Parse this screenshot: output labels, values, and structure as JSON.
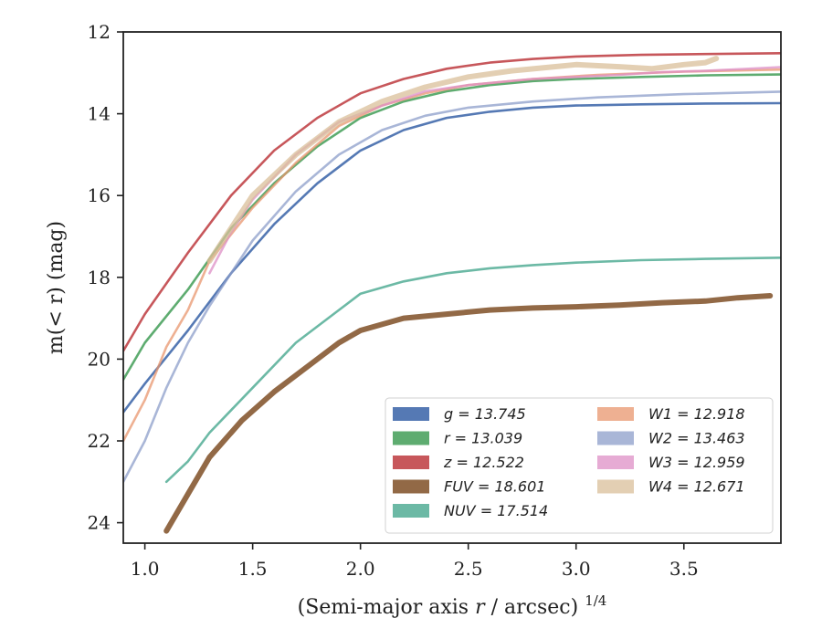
{
  "chart_data": {
    "type": "line",
    "xlabel": "(Semi-major axis r / arcsec)",
    "xlabel_italic_part": "r",
    "xlabel_exponent": "1/4",
    "ylabel": "m(< r) (mag)",
    "xlim": [
      0.9,
      3.95
    ],
    "ylim": [
      24.5,
      12.0
    ],
    "y_inverted": true,
    "x_ticks": [
      1.0,
      1.5,
      2.0,
      2.5,
      3.0,
      3.5
    ],
    "x_tick_labels": [
      "1.0",
      "1.5",
      "2.0",
      "2.5",
      "3.0",
      "3.5"
    ],
    "y_ticks": [
      12,
      14,
      16,
      18,
      20,
      22,
      24
    ],
    "y_tick_labels": [
      "12",
      "14",
      "16",
      "18",
      "20",
      "22",
      "24"
    ],
    "grid": false,
    "legend_position": "lower-right",
    "legend_columns": 2,
    "series": [
      {
        "name": "g = 13.745",
        "color": "#4c72b0",
        "points": [
          [
            0.9,
            21.3
          ],
          [
            1.0,
            20.6
          ],
          [
            1.2,
            19.3
          ],
          [
            1.4,
            17.9
          ],
          [
            1.6,
            16.7
          ],
          [
            1.8,
            15.7
          ],
          [
            2.0,
            14.9
          ],
          [
            2.2,
            14.4
          ],
          [
            2.4,
            14.1
          ],
          [
            2.6,
            13.95
          ],
          [
            2.8,
            13.85
          ],
          [
            3.0,
            13.8
          ],
          [
            3.3,
            13.77
          ],
          [
            3.6,
            13.75
          ],
          [
            3.95,
            13.74
          ]
        ]
      },
      {
        "name": "r = 13.039",
        "color": "#55a868",
        "points": [
          [
            0.9,
            20.5
          ],
          [
            1.0,
            19.6
          ],
          [
            1.2,
            18.3
          ],
          [
            1.4,
            16.8
          ],
          [
            1.6,
            15.7
          ],
          [
            1.8,
            14.8
          ],
          [
            2.0,
            14.1
          ],
          [
            2.2,
            13.7
          ],
          [
            2.4,
            13.45
          ],
          [
            2.6,
            13.3
          ],
          [
            2.8,
            13.2
          ],
          [
            3.0,
            13.15
          ],
          [
            3.3,
            13.1
          ],
          [
            3.6,
            13.06
          ],
          [
            3.95,
            13.04
          ]
        ]
      },
      {
        "name": "z = 12.522",
        "color": "#c44e52",
        "points": [
          [
            0.9,
            19.8
          ],
          [
            1.0,
            18.9
          ],
          [
            1.2,
            17.4
          ],
          [
            1.4,
            16.0
          ],
          [
            1.6,
            14.9
          ],
          [
            1.8,
            14.1
          ],
          [
            2.0,
            13.5
          ],
          [
            2.2,
            13.15
          ],
          [
            2.4,
            12.9
          ],
          [
            2.6,
            12.75
          ],
          [
            2.8,
            12.66
          ],
          [
            3.0,
            12.6
          ],
          [
            3.3,
            12.56
          ],
          [
            3.6,
            12.54
          ],
          [
            3.95,
            12.52
          ]
        ]
      },
      {
        "name": "FUV = 18.601",
        "color": "#8c613c",
        "points": [
          [
            1.1,
            24.2
          ],
          [
            1.2,
            23.3
          ],
          [
            1.3,
            22.4
          ],
          [
            1.45,
            21.5
          ],
          [
            1.6,
            20.8
          ],
          [
            1.8,
            20.0
          ],
          [
            1.9,
            19.6
          ],
          [
            2.0,
            19.3
          ],
          [
            2.2,
            19.0
          ],
          [
            2.4,
            18.9
          ],
          [
            2.6,
            18.8
          ],
          [
            2.8,
            18.75
          ],
          [
            3.0,
            18.72
          ],
          [
            3.2,
            18.68
          ],
          [
            3.4,
            18.62
          ],
          [
            3.6,
            18.58
          ],
          [
            3.75,
            18.5
          ],
          [
            3.9,
            18.45
          ]
        ]
      },
      {
        "name": "NUV = 17.514",
        "color": "#64b5a0",
        "points": [
          [
            1.1,
            23.0
          ],
          [
            1.2,
            22.5
          ],
          [
            1.3,
            21.8
          ],
          [
            1.5,
            20.7
          ],
          [
            1.7,
            19.6
          ],
          [
            1.9,
            18.8
          ],
          [
            2.0,
            18.4
          ],
          [
            2.2,
            18.1
          ],
          [
            2.4,
            17.9
          ],
          [
            2.6,
            17.78
          ],
          [
            2.8,
            17.7
          ],
          [
            3.0,
            17.64
          ],
          [
            3.3,
            17.58
          ],
          [
            3.6,
            17.55
          ],
          [
            3.95,
            17.52
          ]
        ]
      },
      {
        "name": "W1 = 12.918",
        "color": "#e8956d",
        "points": [
          [
            0.9,
            22.0
          ],
          [
            1.0,
            21.0
          ],
          [
            1.1,
            19.7
          ],
          [
            1.2,
            18.8
          ],
          [
            1.3,
            17.6
          ],
          [
            1.5,
            16.3
          ],
          [
            1.7,
            15.2
          ],
          [
            1.9,
            14.3
          ],
          [
            2.1,
            13.8
          ],
          [
            2.3,
            13.5
          ],
          [
            2.5,
            13.3
          ],
          [
            2.8,
            13.15
          ],
          [
            3.1,
            13.05
          ],
          [
            3.5,
            12.97
          ],
          [
            3.95,
            12.92
          ]
        ]
      },
      {
        "name": "W2 = 13.463",
        "color": "#8c9ec9",
        "points": [
          [
            0.9,
            23.0
          ],
          [
            1.0,
            22.0
          ],
          [
            1.1,
            20.7
          ],
          [
            1.2,
            19.6
          ],
          [
            1.3,
            18.7
          ],
          [
            1.5,
            17.1
          ],
          [
            1.7,
            15.9
          ],
          [
            1.9,
            15.0
          ],
          [
            2.1,
            14.4
          ],
          [
            2.3,
            14.05
          ],
          [
            2.5,
            13.85
          ],
          [
            2.8,
            13.7
          ],
          [
            3.1,
            13.6
          ],
          [
            3.5,
            13.52
          ],
          [
            3.95,
            13.46
          ]
        ]
      },
      {
        "name": "W3 = 12.959",
        "color": "#dd8fc6",
        "points": [
          [
            1.3,
            17.9
          ],
          [
            1.4,
            16.9
          ],
          [
            1.5,
            16.1
          ],
          [
            1.7,
            15.0
          ],
          [
            1.9,
            14.2
          ],
          [
            2.1,
            13.8
          ],
          [
            2.3,
            13.45
          ],
          [
            2.5,
            13.3
          ],
          [
            2.8,
            13.15
          ],
          [
            3.0,
            13.1
          ],
          [
            3.2,
            13.05
          ],
          [
            3.4,
            12.98
          ],
          [
            3.6,
            12.95
          ],
          [
            3.8,
            12.9
          ],
          [
            3.95,
            12.86
          ]
        ]
      },
      {
        "name": "W4 = 12.671",
        "color": "#d9bf99",
        "points": [
          [
            1.3,
            17.6
          ],
          [
            1.4,
            16.8
          ],
          [
            1.5,
            16.0
          ],
          [
            1.7,
            15.0
          ],
          [
            1.9,
            14.2
          ],
          [
            2.1,
            13.7
          ],
          [
            2.3,
            13.35
          ],
          [
            2.5,
            13.1
          ],
          [
            2.7,
            12.95
          ],
          [
            2.9,
            12.85
          ],
          [
            3.0,
            12.8
          ],
          [
            3.2,
            12.85
          ],
          [
            3.35,
            12.9
          ],
          [
            3.5,
            12.8
          ],
          [
            3.6,
            12.75
          ],
          [
            3.65,
            12.65
          ]
        ]
      }
    ]
  }
}
